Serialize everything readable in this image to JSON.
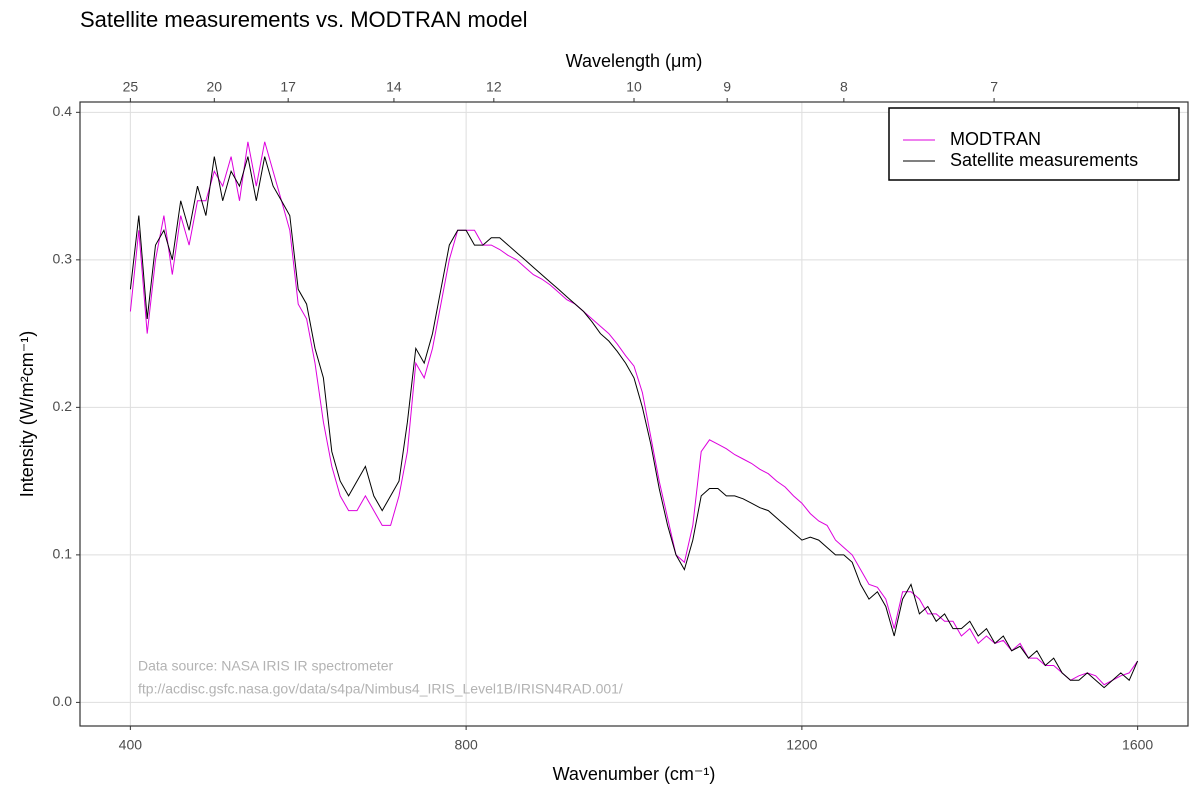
{
  "chart_data": {
    "type": "line",
    "title": "Satellite measurements vs. MODTRAN model",
    "x_label": "Wavenumber (cm⁻¹)",
    "y_label": "Intensity (W/m²cm⁻¹)",
    "x2_label": "Wavelength (μm)",
    "annotations": [
      "Data source: NASA IRIS IR spectrometer",
      "ftp://acdisc.gsfc.nasa.gov/data/s4pa/Nimbus4_IRIS_Level1B/IRISN4RAD.001/"
    ],
    "xlim": [
      340,
      1660
    ],
    "ylim": [
      -0.016,
      0.407
    ],
    "xticks": [
      400,
      800,
      1200,
      1600
    ],
    "yticks": [
      {
        "value": 0,
        "label": "0.0"
      },
      0.1,
      0.2,
      0.3,
      0.4
    ],
    "x2ticks": [
      {
        "value": 400,
        "label": "25"
      },
      {
        "value": 500,
        "label": "20"
      },
      {
        "value": 588,
        "label": "17"
      },
      {
        "value": 714,
        "label": "14"
      },
      {
        "value": 833,
        "label": "12"
      },
      {
        "value": 1000,
        "label": "10"
      },
      {
        "value": 1111,
        "label": "9"
      },
      {
        "value": 1250,
        "label": "8"
      },
      {
        "value": 1429,
        "label": "7"
      }
    ],
    "grid": true,
    "legend": "top-right",
    "x": [
      400,
      410,
      420,
      430,
      440,
      450,
      460,
      470,
      480,
      490,
      500,
      510,
      520,
      530,
      540,
      550,
      560,
      570,
      580,
      590,
      600,
      610,
      620,
      630,
      640,
      650,
      660,
      670,
      680,
      690,
      700,
      710,
      720,
      730,
      740,
      750,
      760,
      770,
      780,
      790,
      800,
      810,
      820,
      830,
      840,
      850,
      860,
      870,
      880,
      890,
      900,
      910,
      920,
      930,
      940,
      950,
      960,
      970,
      980,
      990,
      1000,
      1010,
      1020,
      1030,
      1040,
      1050,
      1060,
      1070,
      1080,
      1090,
      1100,
      1110,
      1120,
      1130,
      1140,
      1150,
      1160,
      1170,
      1180,
      1190,
      1200,
      1210,
      1220,
      1230,
      1240,
      1250,
      1260,
      1270,
      1280,
      1290,
      1300,
      1310,
      1320,
      1330,
      1340,
      1350,
      1360,
      1370,
      1380,
      1390,
      1400,
      1410,
      1420,
      1430,
      1440,
      1450,
      1460,
      1470,
      1480,
      1490,
      1500,
      1510,
      1520,
      1530,
      1540,
      1550,
      1560,
      1570,
      1580,
      1590,
      1600
    ],
    "series": [
      {
        "name": "MODTRAN",
        "color": "#dd00dd",
        "values": [
          0.265,
          0.32,
          0.25,
          0.3,
          0.33,
          0.29,
          0.33,
          0.31,
          0.34,
          0.34,
          0.36,
          0.35,
          0.37,
          0.34,
          0.38,
          0.35,
          0.38,
          0.36,
          0.34,
          0.32,
          0.27,
          0.26,
          0.23,
          0.19,
          0.16,
          0.14,
          0.13,
          0.13,
          0.14,
          0.13,
          0.12,
          0.12,
          0.14,
          0.17,
          0.23,
          0.22,
          0.24,
          0.27,
          0.3,
          0.32,
          0.32,
          0.32,
          0.31,
          0.31,
          0.307,
          0.303,
          0.3,
          0.295,
          0.29,
          0.287,
          0.283,
          0.278,
          0.273,
          0.27,
          0.265,
          0.26,
          0.255,
          0.25,
          0.243,
          0.235,
          0.228,
          0.21,
          0.18,
          0.15,
          0.125,
          0.1,
          0.095,
          0.12,
          0.17,
          0.178,
          0.175,
          0.172,
          0.168,
          0.165,
          0.162,
          0.158,
          0.155,
          0.15,
          0.146,
          0.14,
          0.135,
          0.128,
          0.123,
          0.12,
          0.11,
          0.105,
          0.1,
          0.09,
          0.08,
          0.078,
          0.07,
          0.05,
          0.075,
          0.075,
          0.07,
          0.06,
          0.06,
          0.055,
          0.055,
          0.045,
          0.05,
          0.04,
          0.045,
          0.04,
          0.042,
          0.035,
          0.04,
          0.03,
          0.03,
          0.025,
          0.025,
          0.02,
          0.015,
          0.018,
          0.02,
          0.018,
          0.012,
          0.015,
          0.018,
          0.02,
          0.028
        ]
      },
      {
        "name": "Satellite measurements",
        "color": "#000000",
        "values": [
          0.28,
          0.33,
          0.26,
          0.31,
          0.32,
          0.3,
          0.34,
          0.32,
          0.35,
          0.33,
          0.37,
          0.34,
          0.36,
          0.35,
          0.37,
          0.34,
          0.37,
          0.35,
          0.34,
          0.33,
          0.28,
          0.27,
          0.24,
          0.22,
          0.17,
          0.15,
          0.14,
          0.15,
          0.16,
          0.14,
          0.13,
          0.14,
          0.15,
          0.19,
          0.24,
          0.23,
          0.25,
          0.28,
          0.31,
          0.32,
          0.32,
          0.31,
          0.31,
          0.315,
          0.315,
          0.31,
          0.305,
          0.3,
          0.295,
          0.29,
          0.285,
          0.28,
          0.275,
          0.27,
          0.265,
          0.258,
          0.25,
          0.245,
          0.238,
          0.23,
          0.22,
          0.2,
          0.175,
          0.145,
          0.12,
          0.1,
          0.09,
          0.11,
          0.14,
          0.145,
          0.145,
          0.14,
          0.14,
          0.138,
          0.135,
          0.132,
          0.13,
          0.125,
          0.12,
          0.115,
          0.11,
          0.112,
          0.11,
          0.105,
          0.1,
          0.1,
          0.095,
          0.08,
          0.07,
          0.075,
          0.065,
          0.045,
          0.07,
          0.08,
          0.06,
          0.065,
          0.055,
          0.06,
          0.05,
          0.05,
          0.055,
          0.045,
          0.05,
          0.04,
          0.045,
          0.035,
          0.038,
          0.03,
          0.035,
          0.025,
          0.03,
          0.02,
          0.015,
          0.015,
          0.02,
          0.015,
          0.01,
          0.015,
          0.02,
          0.015,
          0.028
        ]
      }
    ]
  }
}
